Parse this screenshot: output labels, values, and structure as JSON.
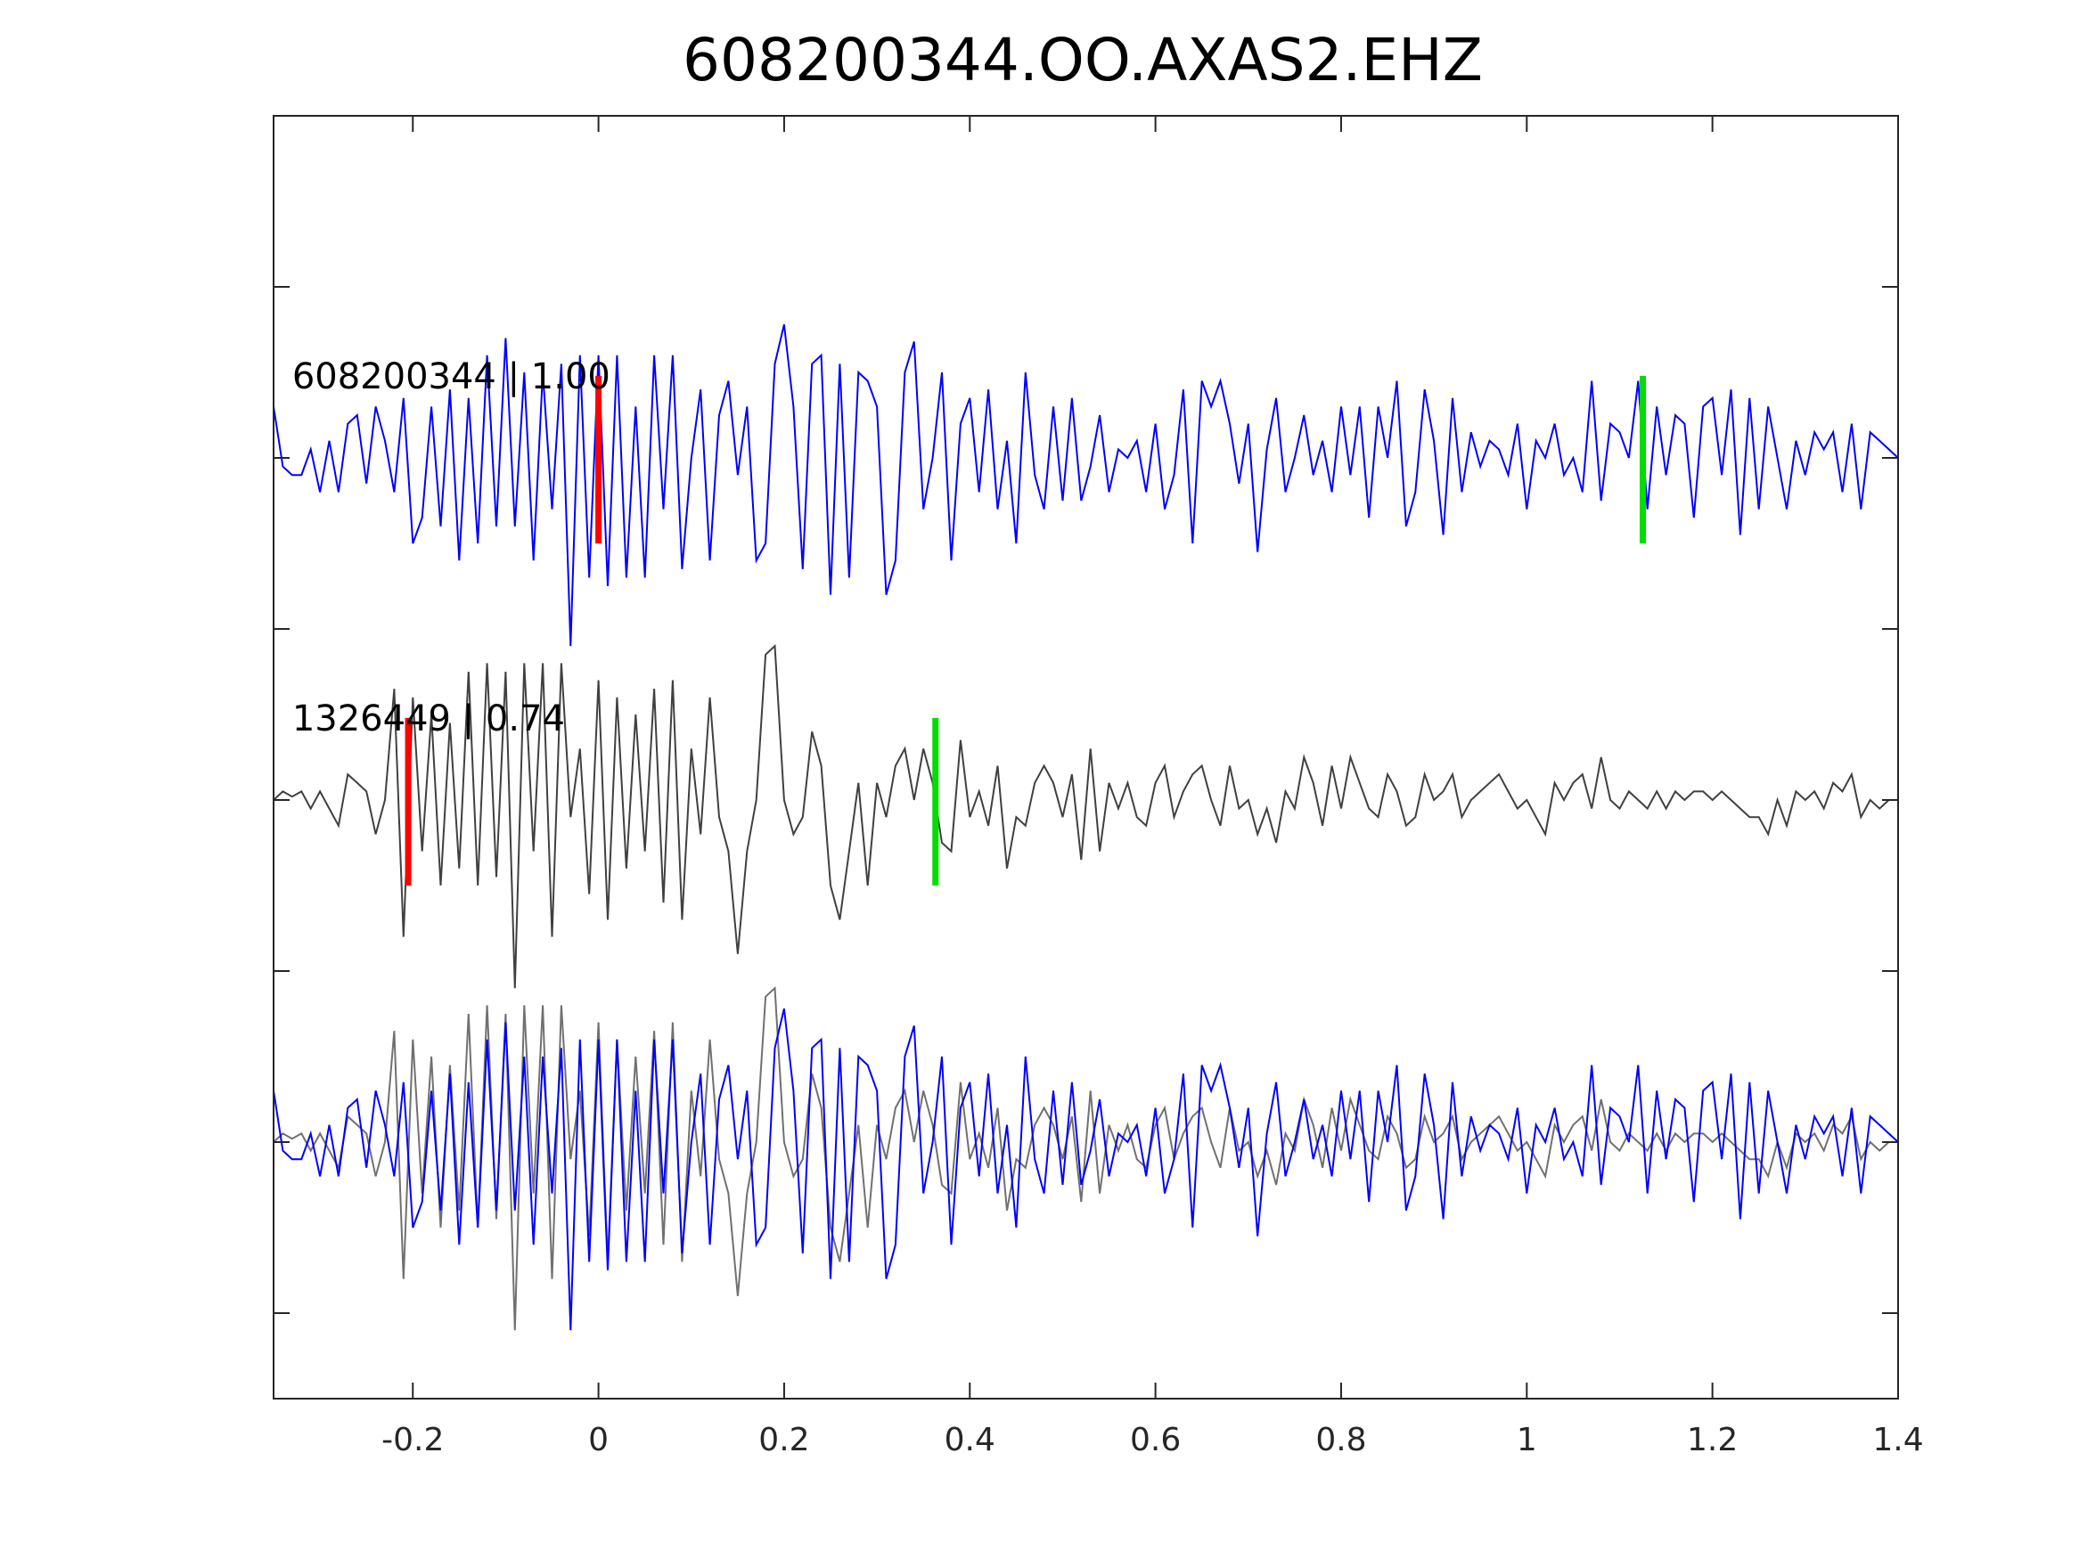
{
  "chart_data": {
    "type": "line",
    "title": "608200344.OO.AXAS2.EHZ",
    "xlabel": "",
    "ylabel": "",
    "xlim": [
      -0.35,
      1.4
    ],
    "ylim": [
      0,
      7.5
    ],
    "x_ticks": [
      -0.2,
      0,
      0.2,
      0.4,
      0.6,
      0.8,
      1,
      1.2,
      1.4
    ],
    "x_tick_labels": [
      "-0.2",
      "0",
      "0.2",
      "0.4",
      "0.6",
      "0.8",
      "1",
      "1.2",
      "1.4"
    ],
    "y_ticks": [
      0.5,
      1.5,
      2.5,
      3.5,
      4.5,
      5.5,
      6.5
    ],
    "grid": false,
    "sample_start": -0.35,
    "sample_interval": 0.01,
    "series": [
      {
        "name": "608200344",
        "label": "608200344 | 1.00",
        "color": "#0000ff",
        "baselines": [
          5.5,
          1.5
        ],
        "values": [
          0.3,
          -0.05,
          -0.1,
          -0.1,
          0.05,
          -0.2,
          0.1,
          -0.2,
          0.2,
          0.25,
          -0.15,
          0.3,
          0.1,
          -0.2,
          0.35,
          -0.5,
          -0.35,
          0.3,
          -0.4,
          0.4,
          -0.6,
          0.35,
          -0.5,
          0.6,
          -0.4,
          0.7,
          -0.4,
          0.5,
          -0.6,
          0.5,
          -0.3,
          0.55,
          -1.1,
          0.6,
          -0.7,
          0.6,
          -0.75,
          0.6,
          -0.7,
          0.3,
          -0.7,
          0.6,
          -0.3,
          0.6,
          -0.65,
          0.0,
          0.4,
          -0.6,
          0.25,
          0.45,
          -0.1,
          0.3,
          -0.6,
          -0.5,
          0.55,
          0.78,
          0.3,
          -0.65,
          0.55,
          0.6,
          -0.8,
          0.55,
          -0.7,
          0.5,
          0.45,
          0.3,
          -0.8,
          -0.6,
          0.5,
          0.68,
          -0.3,
          0.0,
          0.5,
          -0.6,
          0.2,
          0.35,
          -0.2,
          0.4,
          -0.3,
          0.1,
          -0.5,
          0.5,
          -0.1,
          -0.3,
          0.3,
          -0.25,
          0.35,
          -0.25,
          -0.05,
          0.25,
          -0.2,
          0.05,
          0.0,
          0.1,
          -0.2,
          0.2,
          -0.3,
          -0.1,
          0.4,
          -0.5,
          0.45,
          0.3,
          0.45,
          0.2,
          -0.15,
          0.2,
          -0.55,
          0.05,
          0.35,
          -0.2,
          0.0,
          0.25,
          -0.1,
          0.1,
          -0.2,
          0.3,
          -0.1,
          0.3,
          -0.35,
          0.3,
          0.0,
          0.45,
          -0.4,
          -0.2,
          0.4,
          0.1,
          -0.45,
          0.35,
          -0.2,
          0.15,
          -0.05,
          0.1,
          0.05,
          -0.1,
          0.2,
          -0.3,
          0.1,
          0.0,
          0.2,
          -0.1,
          0.0,
          -0.2,
          0.45,
          -0.25,
          0.2,
          0.15,
          0.0,
          0.45,
          -0.3,
          0.3,
          -0.1,
          0.25,
          0.2,
          -0.35,
          0.3,
          0.35,
          -0.1,
          0.4,
          -0.45,
          0.35,
          -0.3,
          0.3,
          0.0,
          -0.3,
          0.1,
          -0.1,
          0.15,
          0.05,
          0.15,
          -0.2,
          0.2,
          -0.3,
          0.15,
          0.1,
          0.05,
          0.0
        ]
      },
      {
        "name": "1326449",
        "label": "1326449 | 0.74",
        "color": "#404040",
        "baselines": [
          3.5,
          1.5
        ],
        "values": [
          0.0,
          0.05,
          0.02,
          0.05,
          -0.05,
          0.05,
          -0.05,
          -0.15,
          0.15,
          0.1,
          0.05,
          -0.2,
          0.0,
          0.65,
          -0.8,
          0.6,
          -0.3,
          0.5,
          -0.5,
          0.45,
          -0.4,
          0.75,
          -0.5,
          0.8,
          -0.45,
          0.75,
          -1.1,
          0.8,
          -0.3,
          0.8,
          -0.8,
          0.8,
          -0.1,
          0.3,
          -0.55,
          0.7,
          -0.7,
          0.6,
          -0.4,
          0.5,
          -0.3,
          0.65,
          -0.6,
          0.7,
          -0.7,
          0.3,
          -0.2,
          0.6,
          -0.1,
          -0.3,
          -0.9,
          -0.3,
          0.0,
          0.85,
          0.9,
          0.0,
          -0.2,
          -0.1,
          0.4,
          0.2,
          -0.5,
          -0.7,
          -0.3,
          0.1,
          -0.5,
          0.1,
          -0.1,
          0.2,
          0.3,
          0.0,
          0.3,
          0.1,
          -0.25,
          -0.3,
          0.35,
          -0.1,
          0.05,
          -0.15,
          0.2,
          -0.4,
          -0.1,
          -0.15,
          0.1,
          0.2,
          0.1,
          -0.1,
          0.15,
          -0.35,
          0.3,
          -0.3,
          0.1,
          -0.05,
          0.1,
          -0.1,
          -0.15,
          0.1,
          0.2,
          -0.1,
          0.05,
          0.15,
          0.2,
          0.0,
          -0.15,
          0.2,
          -0.05,
          0.0,
          -0.2,
          -0.05,
          -0.25,
          0.05,
          -0.05,
          0.25,
          0.1,
          -0.15,
          0.2,
          -0.05,
          0.25,
          0.1,
          -0.05,
          -0.1,
          0.15,
          0.05,
          -0.15,
          -0.1,
          0.15,
          0.0,
          0.05,
          0.15,
          -0.1,
          0.0,
          0.05,
          0.1,
          0.15,
          0.05,
          -0.05,
          0.0,
          -0.1,
          -0.2,
          0.1,
          0.0,
          0.1,
          0.15,
          -0.05,
          0.25,
          0.0,
          -0.05,
          0.05,
          0.0,
          -0.05,
          0.05,
          -0.05,
          0.05,
          0.0,
          0.05,
          0.05,
          0.0,
          0.05,
          0.0,
          -0.05,
          -0.1,
          -0.1,
          -0.2,
          0.0,
          -0.15,
          0.05,
          0.0,
          0.05,
          -0.05,
          0.1,
          0.05,
          0.15,
          -0.1,
          0.0,
          -0.05,
          0.0,
          0.0
        ]
      }
    ],
    "picks": [
      {
        "trace": "608200344",
        "baseline": 5.5,
        "x": 0.0,
        "color": "#ff0000"
      },
      {
        "trace": "608200344",
        "baseline": 5.5,
        "x": 1.125,
        "color": "#00dd00"
      },
      {
        "trace": "1326449",
        "baseline": 3.5,
        "x": -0.205,
        "color": "#ff0000"
      },
      {
        "trace": "1326449",
        "baseline": 3.5,
        "x": 0.363,
        "color": "#00dd00"
      }
    ]
  }
}
